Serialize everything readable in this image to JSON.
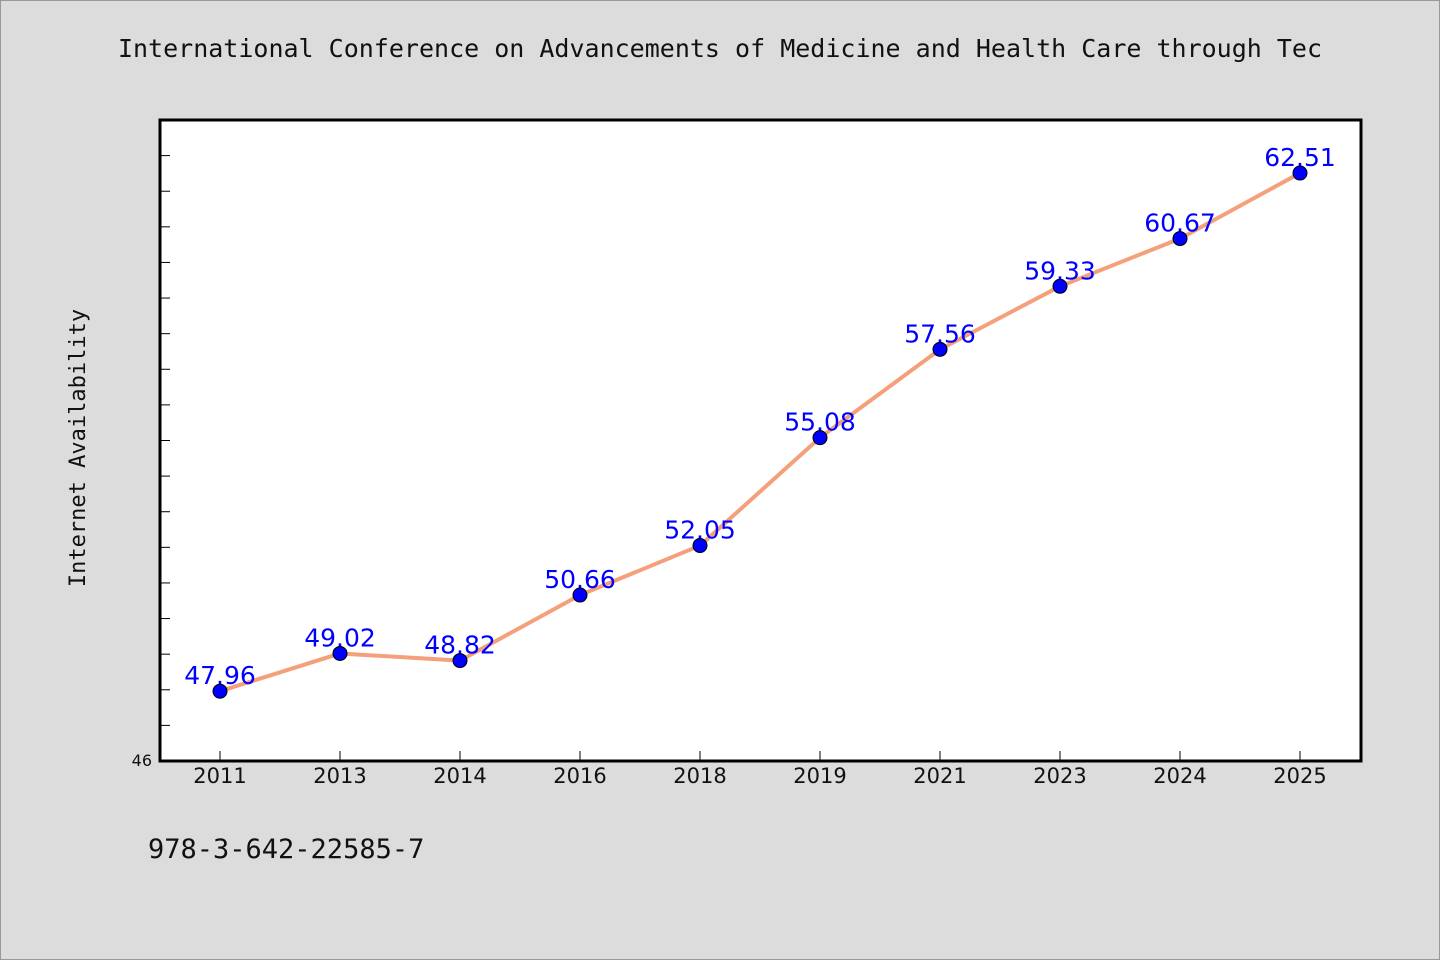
{
  "header": {
    "title": "International Conference on Advancements of Medicine and Health Care through Tec"
  },
  "footer": {
    "isbn": "978-3-642-22585-7"
  },
  "chart_data": {
    "type": "line",
    "title": "International Conference on Advancements of Medicine and Health Care through Tec",
    "xlabel": "",
    "ylabel": "Internet Availability",
    "categories": [
      "2011",
      "2013",
      "2014",
      "2016",
      "2018",
      "2019",
      "2021",
      "2023",
      "2024",
      "2025"
    ],
    "series": [
      {
        "values": [
          47.96,
          49.02,
          48.82,
          50.66,
          52.05,
          55.08,
          57.56,
          59.33,
          60.67,
          62.51
        ],
        "data_labels": [
          "47.96",
          "49.02",
          "48.82",
          "50.66",
          "52.05",
          "55.08",
          "57.56",
          "59.33",
          "60.67",
          "62.51"
        ]
      }
    ],
    "ylim": [
      46,
      64
    ],
    "y_tick_labels": [
      "46"
    ],
    "grid": false,
    "colors": {
      "line": "#f4a07a",
      "marker": "#0000ff",
      "data_label": "#0000ff",
      "background": "#dcdcdc",
      "plot_background": "#ffffff"
    }
  }
}
